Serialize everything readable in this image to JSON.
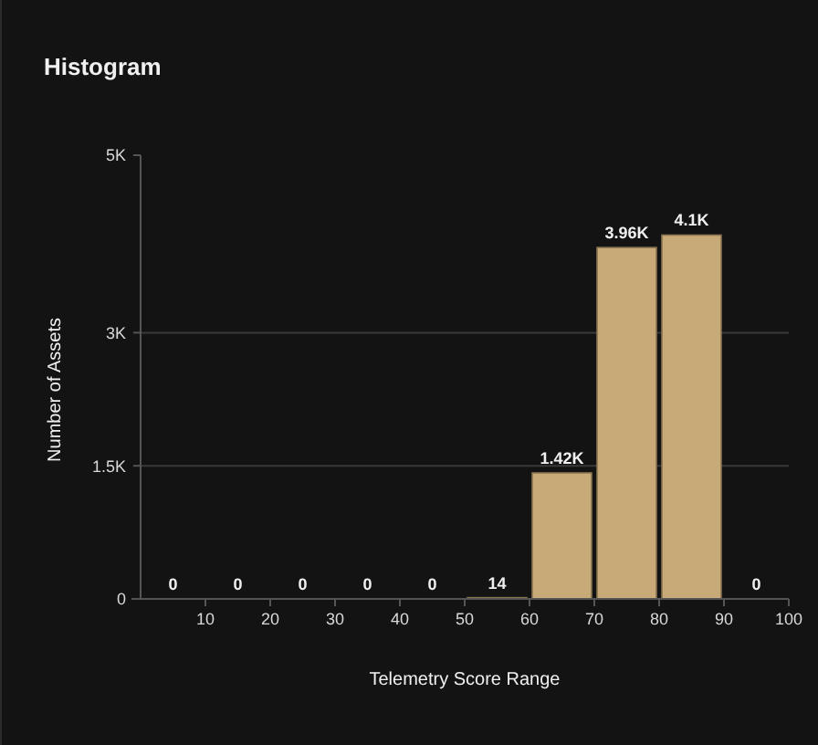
{
  "chart_data": {
    "type": "histogram",
    "title": "Histogram",
    "xlabel": "Telemetry Score Range",
    "ylabel": "Number of Assets",
    "bins": [
      0,
      10,
      20,
      30,
      40,
      50,
      60,
      70,
      80,
      90,
      100
    ],
    "values": [
      0,
      0,
      0,
      0,
      0,
      14,
      1420,
      3960,
      4100,
      0
    ],
    "value_labels": [
      "0",
      "0",
      "0",
      "0",
      "0",
      "14",
      "1.42K",
      "3.96K",
      "4.1K",
      "0"
    ],
    "color": "#c8aa78",
    "xlim": [
      0,
      100
    ],
    "xticks": [
      10,
      20,
      30,
      40,
      50,
      60,
      70,
      80,
      90,
      100
    ],
    "ylim": [
      0,
      5000
    ],
    "yticks": [
      {
        "value": 0,
        "label": "0"
      },
      {
        "value": 1500,
        "label": "1.5K"
      },
      {
        "value": 3000,
        "label": "3K"
      },
      {
        "value": 5000,
        "label": "5K"
      }
    ],
    "grid": "y"
  }
}
